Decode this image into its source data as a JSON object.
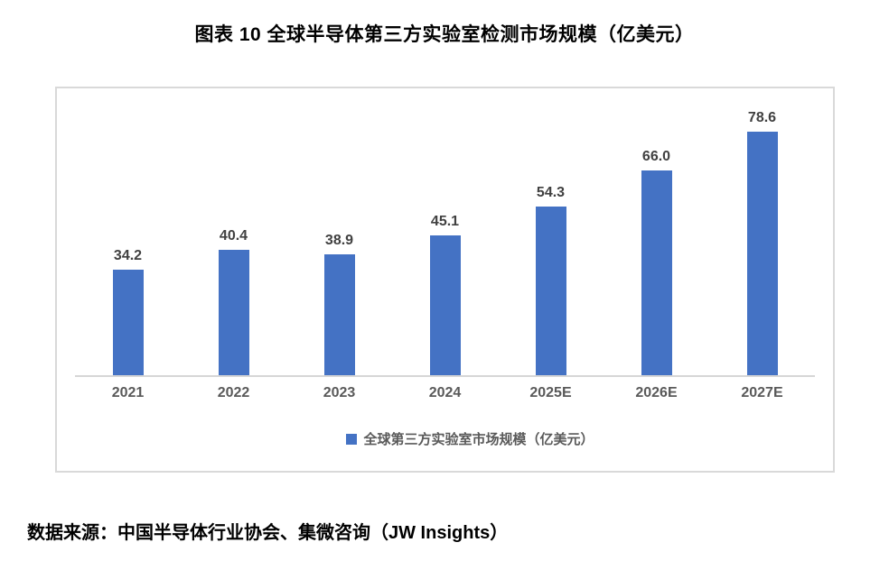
{
  "title": "图表 10 全球半导体第三方实验室检测市场规模（亿美元）",
  "source": "数据来源：中国半导体行业协会、集微咨询（JW Insights）",
  "chart_data": {
    "type": "bar",
    "title": "图表 10 全球半导体第三方实验室检测市场规模（亿美元）",
    "categories": [
      "2021",
      "2022",
      "2023",
      "2024",
      "2025E",
      "2026E",
      "2027E"
    ],
    "values": [
      34.2,
      40.4,
      38.9,
      45.1,
      54.3,
      66.0,
      78.6
    ],
    "value_labels": [
      "34.2",
      "40.4",
      "38.9",
      "45.1",
      "54.3",
      "66.0",
      "78.6"
    ],
    "legend": "全球第三方实验室市场规模（亿美元）",
    "legend_position": "bottom-center",
    "xlabel": "",
    "ylabel": "",
    "ylim": [
      0,
      92
    ],
    "grid": false,
    "y_axis_visible": false,
    "data_labels": "above-bars",
    "bar_color": "#4472C4"
  },
  "colors": {
    "bar": "#4472C4",
    "panel_border": "#D9D9D9",
    "axis_line": "#D6D6D6",
    "data_label_text": "#404040",
    "tick_label_text": "#595959",
    "title_text": "#000000",
    "source_text": "#000000",
    "background": "#FFFFFF"
  }
}
